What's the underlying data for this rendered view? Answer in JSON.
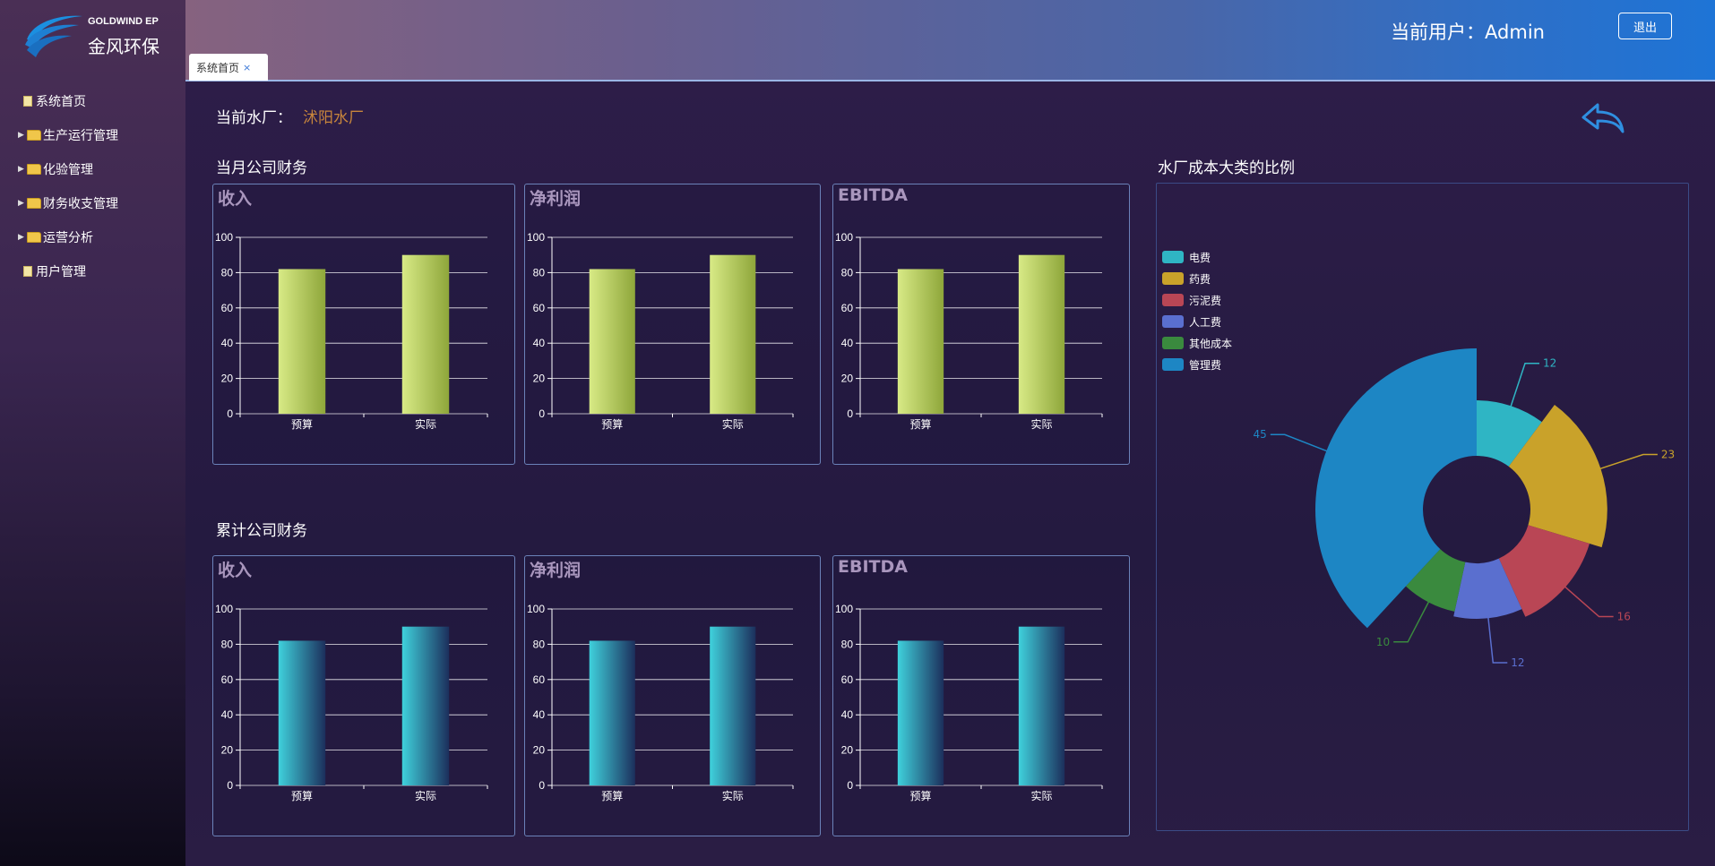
{
  "brand": {
    "en": "GOLDWIND EP",
    "cn": "金风环保"
  },
  "sidebar": {
    "items": [
      {
        "label": "系统首页",
        "type": "file",
        "expandable": false
      },
      {
        "label": "生产运行管理",
        "type": "folder",
        "expandable": true
      },
      {
        "label": "化验管理",
        "type": "folder",
        "expandable": true
      },
      {
        "label": "财务收支管理",
        "type": "folder",
        "expandable": true
      },
      {
        "label": "运营分析",
        "type": "folder",
        "expandable": true
      },
      {
        "label": "用户管理",
        "type": "file",
        "expandable": false
      }
    ]
  },
  "header": {
    "user_label": "当前用户：Admin",
    "logout_label": "退出",
    "tabs": [
      {
        "label": "系统首页",
        "close": "×"
      }
    ]
  },
  "main": {
    "plant_label": "当前水厂：",
    "plant_name": "沭阳水厂",
    "monthly_title": "当月公司财务",
    "cumulative_title": "累计公司财务",
    "pie_title": "水厂成本大类的比例"
  },
  "colors": {
    "bar_green_light": "#cfe27a",
    "bar_green_dark": "#93ad3e",
    "bar_teal_light": "#36c8d6",
    "bar_teal_dark": "#203a6a",
    "plant_name": "#c8863c",
    "card_border": "#6b82b9"
  },
  "chart_data": [
    {
      "id": "monthly-revenue",
      "type": "bar",
      "title": "收入",
      "categories": [
        "预算",
        "实际"
      ],
      "values": [
        82,
        90
      ],
      "ylim": [
        0,
        100
      ],
      "yticks": [
        0,
        20,
        40,
        60,
        80,
        100
      ],
      "style": "green"
    },
    {
      "id": "monthly-profit",
      "type": "bar",
      "title": "净利润",
      "categories": [
        "预算",
        "实际"
      ],
      "values": [
        82,
        90
      ],
      "ylim": [
        0,
        100
      ],
      "yticks": [
        0,
        20,
        40,
        60,
        80,
        100
      ],
      "style": "green"
    },
    {
      "id": "monthly-ebitda",
      "type": "bar",
      "title": "EBITDA",
      "categories": [
        "预算",
        "实际"
      ],
      "values": [
        82,
        90
      ],
      "ylim": [
        0,
        100
      ],
      "yticks": [
        0,
        20,
        40,
        60,
        80,
        100
      ],
      "style": "green"
    },
    {
      "id": "cumulative-revenue",
      "type": "bar",
      "title": "收入",
      "categories": [
        "预算",
        "实际"
      ],
      "values": [
        82,
        90
      ],
      "ylim": [
        0,
        100
      ],
      "yticks": [
        0,
        20,
        40,
        60,
        80,
        100
      ],
      "style": "teal"
    },
    {
      "id": "cumulative-profit",
      "type": "bar",
      "title": "净利润",
      "categories": [
        "预算",
        "实际"
      ],
      "values": [
        82,
        90
      ],
      "ylim": [
        0,
        100
      ],
      "yticks": [
        0,
        20,
        40,
        60,
        80,
        100
      ],
      "style": "teal"
    },
    {
      "id": "cumulative-ebitda",
      "type": "bar",
      "title": "EBITDA",
      "categories": [
        "预算",
        "实际"
      ],
      "values": [
        82,
        90
      ],
      "ylim": [
        0,
        100
      ],
      "yticks": [
        0,
        20,
        40,
        60,
        80,
        100
      ],
      "style": "teal"
    },
    {
      "id": "cost-rose",
      "type": "pie",
      "subtype": "rose",
      "legend_position": "top-left",
      "slices": [
        {
          "name": "电费",
          "value": 12,
          "color": "#2fb5c4"
        },
        {
          "name": "药费",
          "value": 23,
          "color": "#c9a22a"
        },
        {
          "name": "污泥费",
          "value": 16,
          "color": "#b94655"
        },
        {
          "name": "人工费",
          "value": 12,
          "color": "#5a6fcf"
        },
        {
          "name": "其他成本",
          "value": 10,
          "color": "#3a8a3e"
        },
        {
          "name": "管理费",
          "value": 45,
          "color": "#1d86c4"
        }
      ]
    }
  ]
}
